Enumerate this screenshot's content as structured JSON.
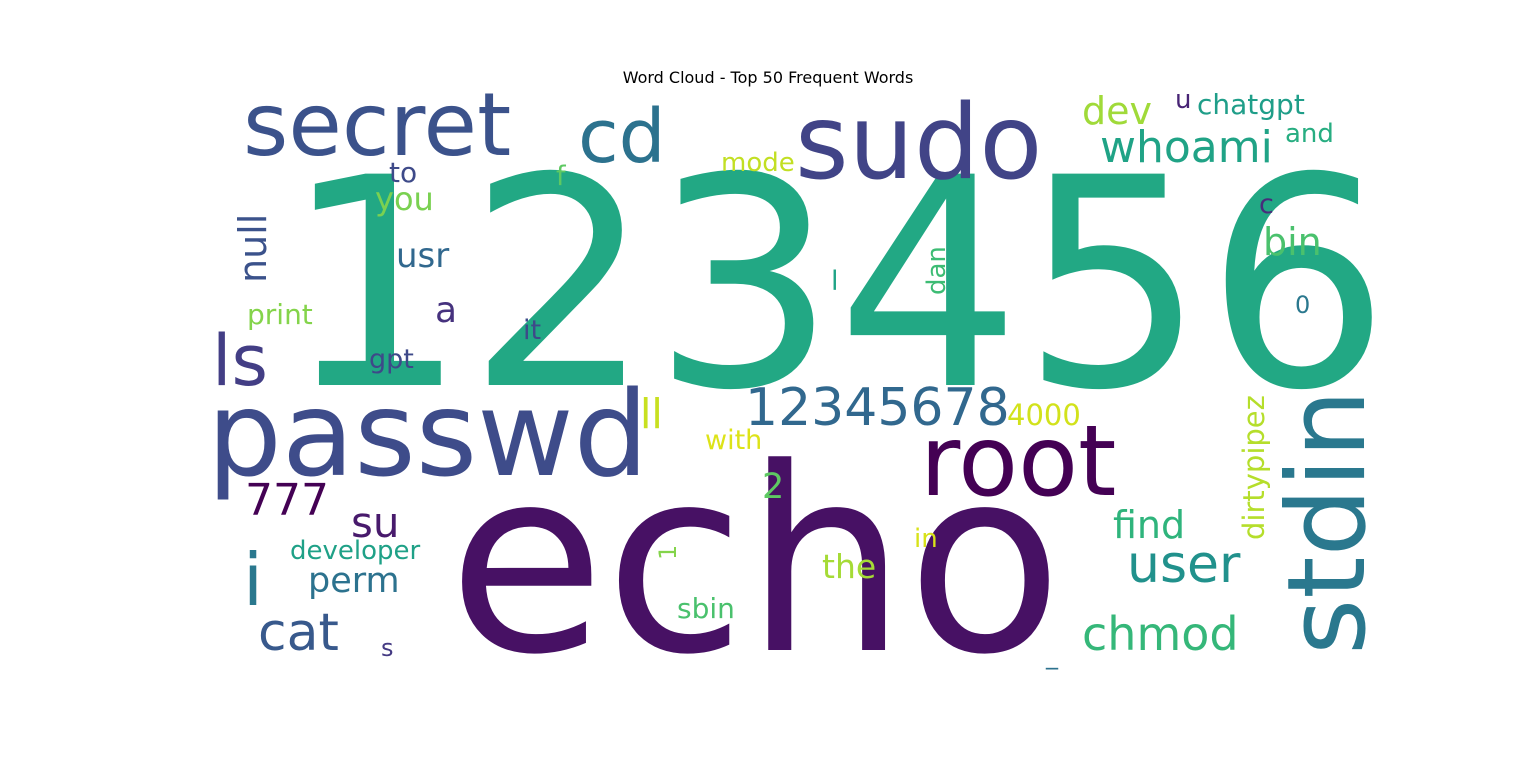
{
  "chart_data": {
    "type": "wordcloud",
    "title": "Word Cloud - Top 50 Frequent Words",
    "words": [
      {
        "text": "123456",
        "rank": 1,
        "color": "#22a884",
        "rotated": false
      },
      {
        "text": "echo",
        "rank": 2,
        "color": "#471164",
        "rotated": false
      },
      {
        "text": "passwd",
        "rank": 3,
        "color": "#3e4c8a",
        "rotated": false
      },
      {
        "text": "stdin",
        "rank": 4,
        "color": "#2a788e",
        "rotated": true
      },
      {
        "text": "sudo",
        "rank": 5,
        "color": "#414487",
        "rotated": false
      },
      {
        "text": "root",
        "rank": 6,
        "color": "#440154",
        "rotated": false
      },
      {
        "text": "secret",
        "rank": 7,
        "color": "#3b528b",
        "rotated": false
      },
      {
        "text": "cd",
        "rank": 8,
        "color": "#2c728e",
        "rotated": false
      },
      {
        "text": "ls",
        "rank": 9,
        "color": "#433e85",
        "rotated": false
      },
      {
        "text": "i",
        "rank": 10,
        "color": "#2a788e",
        "rotated": false
      },
      {
        "text": "12345678",
        "rank": 11,
        "color": "#31688e",
        "rotated": false
      },
      {
        "text": "cat",
        "rank": 12,
        "color": "#38598c",
        "rotated": false
      },
      {
        "text": "user",
        "rank": 13,
        "color": "#21918c",
        "rotated": false
      },
      {
        "text": "chmod",
        "rank": 14,
        "color": "#35b779",
        "rotated": false
      },
      {
        "text": "whoami",
        "rank": 15,
        "color": "#20a386",
        "rotated": false
      },
      {
        "text": "su",
        "rank": 16,
        "color": "#481a6c",
        "rotated": false
      },
      {
        "text": "777",
        "rank": 17,
        "color": "#440154",
        "rotated": false
      },
      {
        "text": "null",
        "rank": 18,
        "color": "#3b528b",
        "rotated": true
      },
      {
        "text": "bin",
        "rank": 19,
        "color": "#4ac16d",
        "rotated": false
      },
      {
        "text": "find",
        "rank": 20,
        "color": "#2fb47c",
        "rotated": false
      },
      {
        "text": "dev",
        "rank": 21,
        "color": "#a0da39",
        "rotated": false
      },
      {
        "text": "perm",
        "rank": 22,
        "color": "#2c728e",
        "rotated": false
      },
      {
        "text": "usr",
        "rank": 23,
        "color": "#31688e",
        "rotated": false
      },
      {
        "text": "ll",
        "rank": 24,
        "color": "#c8e020",
        "rotated": false
      },
      {
        "text": "dirtypipez",
        "rank": 25,
        "color": "#b5de2b",
        "rotated": true
      },
      {
        "text": "developer",
        "rank": 26,
        "color": "#1fa187",
        "rotated": false
      },
      {
        "text": "you",
        "rank": 27,
        "color": "#7ad151",
        "rotated": false
      },
      {
        "text": "the",
        "rank": 28,
        "color": "#a5db36",
        "rotated": false
      },
      {
        "text": "a",
        "rank": 29,
        "color": "#46327e",
        "rotated": false
      },
      {
        "text": "2",
        "rank": 30,
        "color": "#5ec962",
        "rotated": false
      },
      {
        "text": "chatgpt",
        "rank": 31,
        "color": "#1f9e89",
        "rotated": false
      },
      {
        "text": "4000",
        "rank": 32,
        "color": "#d2e21b",
        "rotated": false
      },
      {
        "text": "sbin",
        "rank": 33,
        "color": "#4ac16d",
        "rotated": false
      },
      {
        "text": "print",
        "rank": 34,
        "color": "#84d44b",
        "rotated": false
      },
      {
        "text": "with",
        "rank": 35,
        "color": "#dde318",
        "rotated": false
      },
      {
        "text": "to",
        "rank": 36,
        "color": "#3e4a89",
        "rotated": false
      },
      {
        "text": "and",
        "rank": 37,
        "color": "#27ad81",
        "rotated": false
      },
      {
        "text": "mode",
        "rank": 38,
        "color": "#c2df23",
        "rotated": false
      },
      {
        "text": "dan",
        "rank": 39,
        "color": "#3dbc74",
        "rotated": true
      },
      {
        "text": "gpt",
        "rank": 40,
        "color": "#3e4989",
        "rotated": false
      },
      {
        "text": "in",
        "rank": 41,
        "color": "#d8e219",
        "rotated": false
      },
      {
        "text": "it",
        "rank": 42,
        "color": "#3e4a89",
        "rotated": false
      },
      {
        "text": "f",
        "rank": 43,
        "color": "#5ec962",
        "rotated": false
      },
      {
        "text": "u",
        "rank": 44,
        "color": "#482475",
        "rotated": false
      },
      {
        "text": "c",
        "rank": 45,
        "color": "#472d7b",
        "rotated": false
      },
      {
        "text": "l",
        "rank": 46,
        "color": "#20a486",
        "rotated": false
      },
      {
        "text": "0",
        "rank": 47,
        "color": "#2a788e",
        "rotated": false
      },
      {
        "text": "s",
        "rank": 48,
        "color": "#443a83",
        "rotated": false
      },
      {
        "text": "1",
        "rank": 49,
        "color": "#84d44b",
        "rotated": true
      },
      {
        "text": "_",
        "rank": 50,
        "color": "#2c728e",
        "rotated": false
      }
    ]
  }
}
